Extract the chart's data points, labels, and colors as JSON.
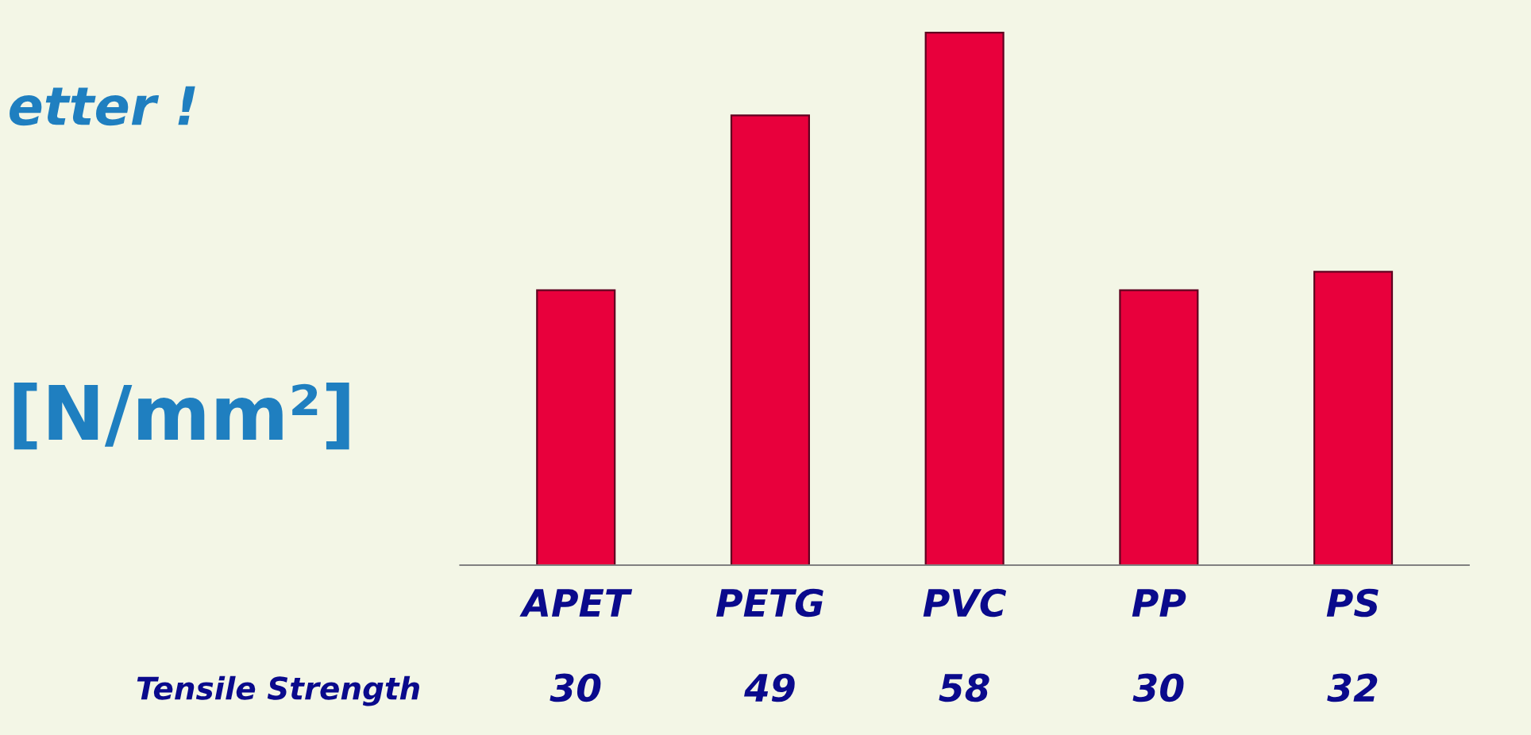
{
  "chart_data": {
    "type": "bar",
    "ylabel": "[N/mm²]",
    "categories": [
      "APET",
      "PETG",
      "PVC",
      "PP",
      "PS"
    ],
    "series": [
      {
        "name": "Tensile Strength",
        "color": "#e8003c",
        "values": [
          30,
          49,
          58,
          30,
          32
        ]
      }
    ],
    "data_labels": true,
    "annotations": [
      "etter !"
    ],
    "grid": false,
    "legend": false
  }
}
